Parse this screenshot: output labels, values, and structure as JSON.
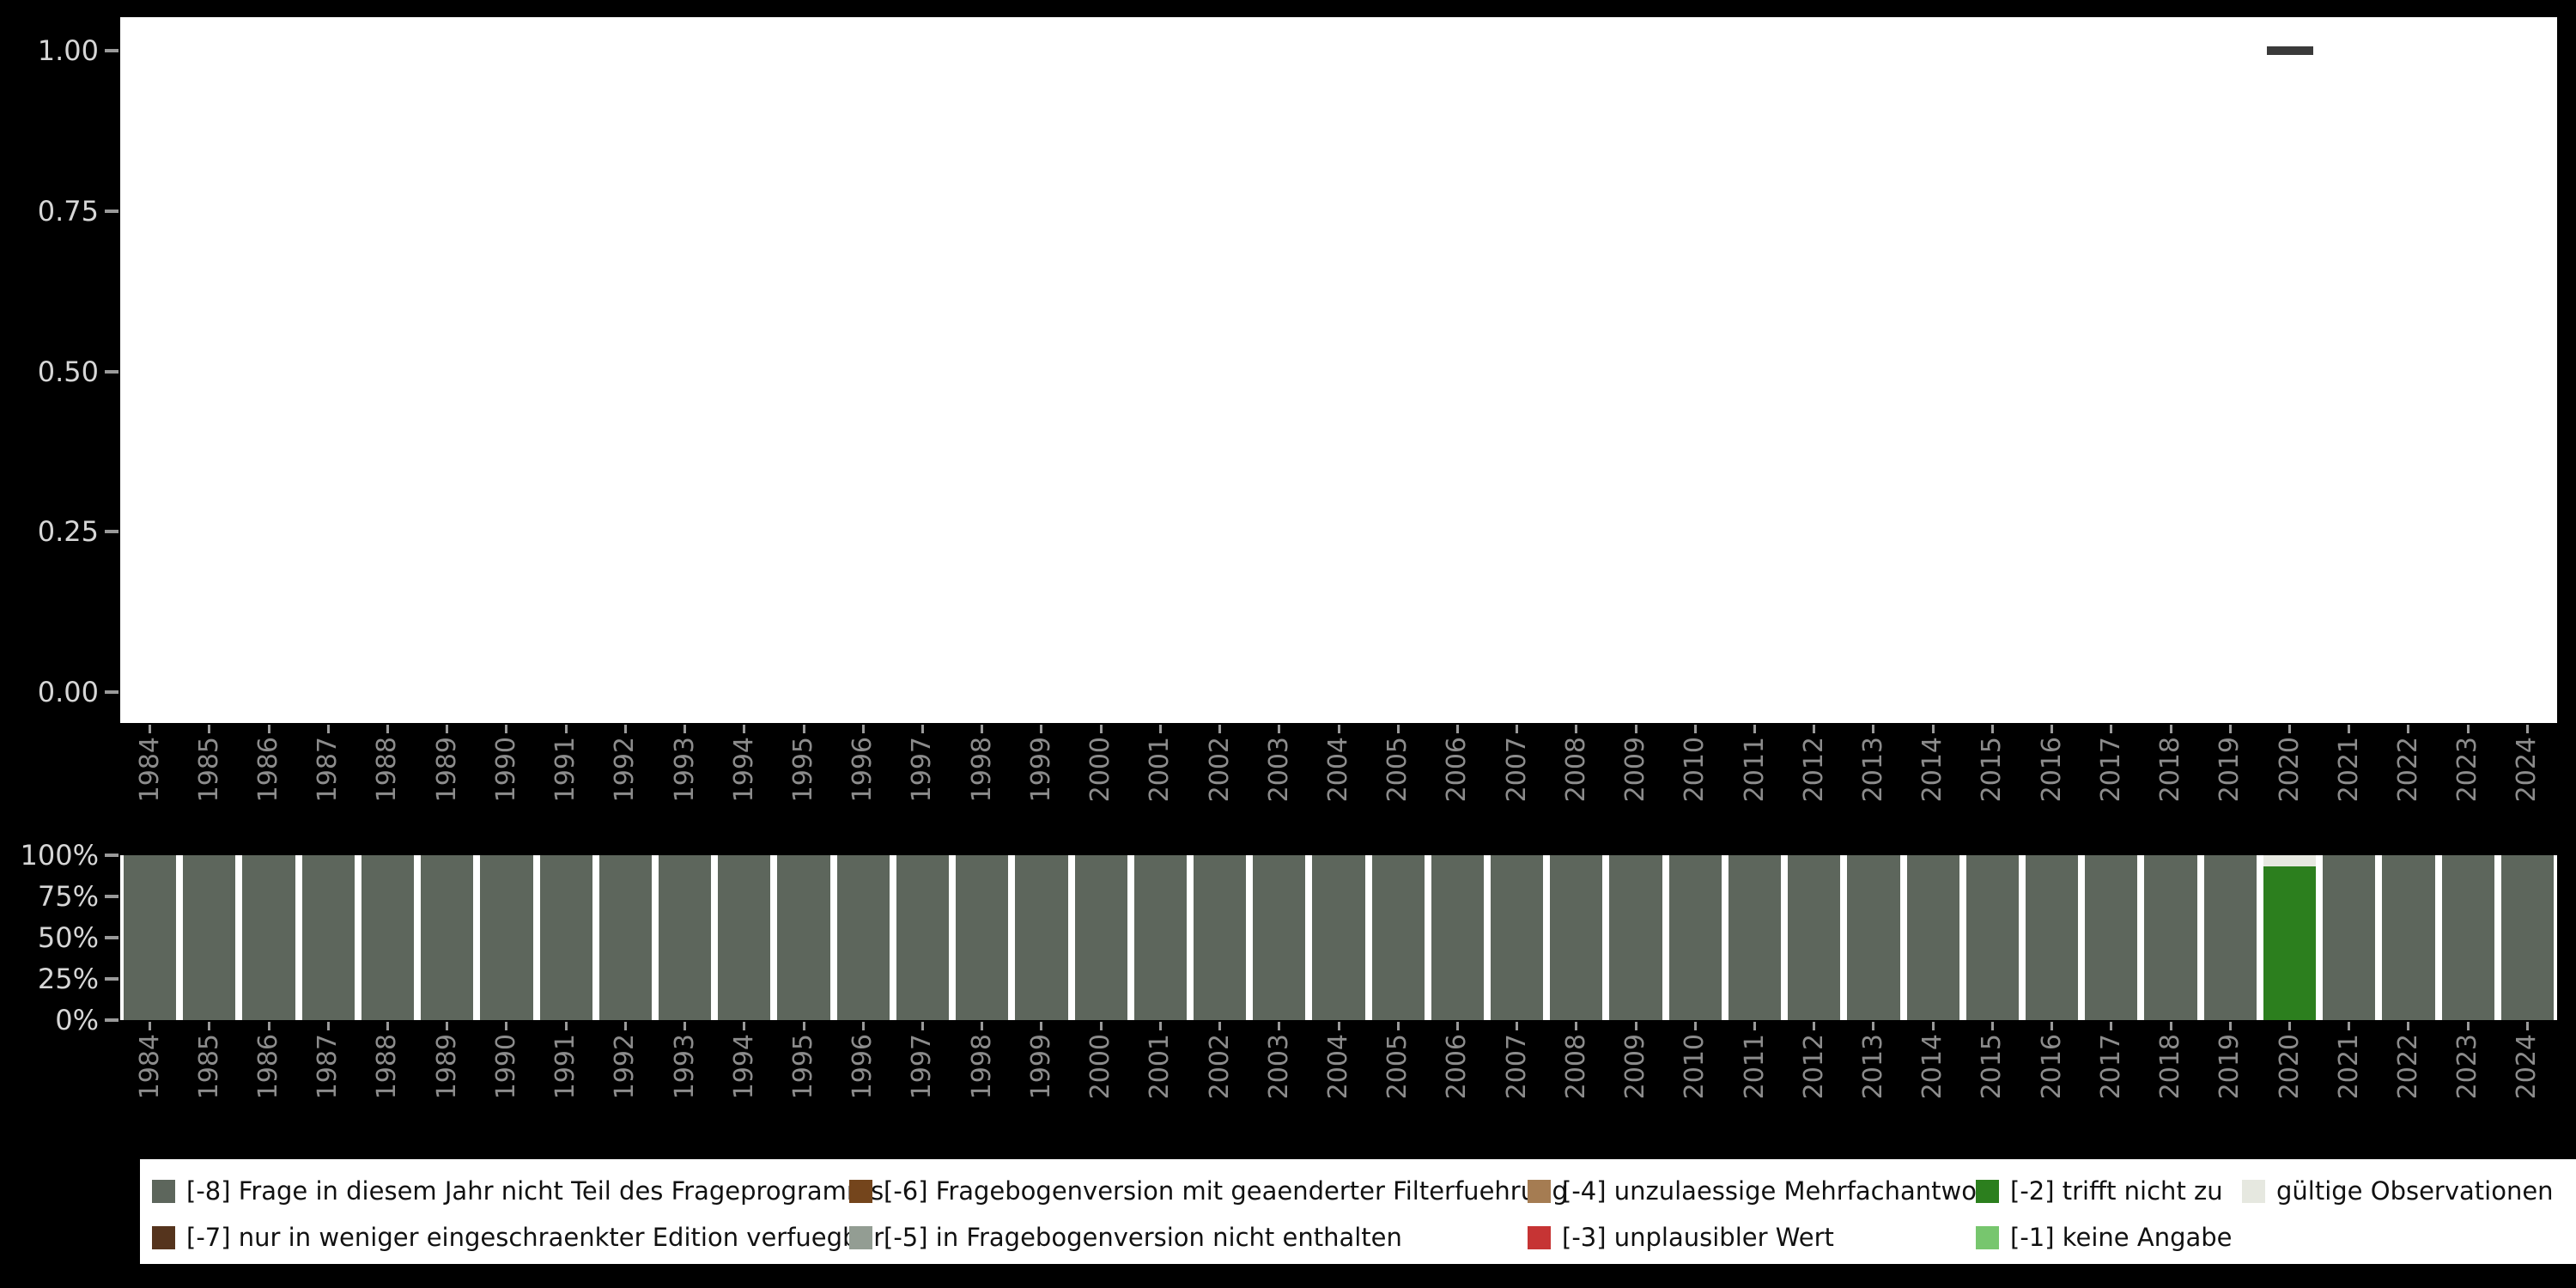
{
  "page": {
    "background": "#000000"
  },
  "colors": {
    "plot_bg": "#ffffff",
    "point": "#3a3a3a",
    "axis_y_text": "#d6d6d6",
    "axis_x_text": "#8c8c8c",
    "tick": "#9a9a9a",
    "legend_bg": "#ffffff",
    "legend_text": "#111111",
    "-8": "#5d665c",
    "-7": "#55341d",
    "-6": "#74451c",
    "-5": "#939d93",
    "-4": "#a57c52",
    "-3": "#c63434",
    "-2": "#2c7f1e",
    "-1": "#77c66e",
    "valid": "#e6e8e0"
  },
  "top_chart": {
    "ytick_labels": [
      "1.00",
      "0.75",
      "0.50",
      "0.25",
      "0.00"
    ],
    "ytick_values": [
      1.0,
      0.75,
      0.5,
      0.25,
      0.0
    ]
  },
  "bottom_chart": {
    "ytick_labels": [
      "100%",
      "75%",
      "50%",
      "25%",
      "0%"
    ],
    "ytick_values": [
      1.0,
      0.75,
      0.5,
      0.25,
      0.0
    ]
  },
  "legend": {
    "items": [
      {
        "key": "-8",
        "col": 0,
        "row": 0,
        "label": "[-8] Frage in diesem Jahr nicht Teil des Frageprogramms"
      },
      {
        "key": "-7",
        "col": 0,
        "row": 1,
        "label": "[-7] nur in weniger eingeschraenkter Edition verfuegbar"
      },
      {
        "key": "-6",
        "col": 1,
        "row": 0,
        "label": "[-6] Fragebogenversion mit geaenderter Filterfuehrung"
      },
      {
        "key": "-5",
        "col": 1,
        "row": 1,
        "label": "[-5] in Fragebogenversion nicht enthalten"
      },
      {
        "key": "-4",
        "col": 2,
        "row": 0,
        "label": "[-4] unzulaessige Mehrfachantwort"
      },
      {
        "key": "-3",
        "col": 2,
        "row": 1,
        "label": "[-3] unplausibler Wert"
      },
      {
        "key": "-2",
        "col": 3,
        "row": 0,
        "label": "[-2] trifft nicht zu"
      },
      {
        "key": "-1",
        "col": 3,
        "row": 1,
        "label": "[-1] keine Angabe"
      },
      {
        "key": "valid",
        "col": 4,
        "row": 0,
        "label": "gültige Observationen"
      }
    ]
  },
  "chart_data": [
    {
      "type": "scatter",
      "title": "",
      "xlabel": "",
      "ylabel": "",
      "ylim": [
        0,
        1
      ],
      "yticks": [
        "1.00",
        "0.75",
        "0.50",
        "0.25",
        "0.00"
      ],
      "x": [
        "2020"
      ],
      "y": [
        1.0
      ],
      "marker": "horizontal-dash",
      "note": "single dark dash mark at year 2020 with value 1.00; all other years have no data"
    },
    {
      "type": "bar",
      "stacked": true,
      "percent": true,
      "title": "",
      "xlabel": "",
      "ylabel": "",
      "yticks": [
        "100%",
        "75%",
        "50%",
        "25%",
        "0%"
      ],
      "legend_position": "bottom",
      "categories": [
        "1984",
        "1985",
        "1986",
        "1987",
        "1988",
        "1989",
        "1990",
        "1991",
        "1992",
        "1993",
        "1994",
        "1995",
        "1996",
        "1997",
        "1998",
        "1999",
        "2000",
        "2001",
        "2002",
        "2003",
        "2004",
        "2005",
        "2006",
        "2007",
        "2008",
        "2009",
        "2010",
        "2011",
        "2012",
        "2013",
        "2014",
        "2015",
        "2016",
        "2017",
        "2018",
        "2019",
        "2020",
        "2021",
        "2022",
        "2023",
        "2024"
      ],
      "series": [
        {
          "key": "-8",
          "name": "[-8] Frage in diesem Jahr nicht Teil des Frageprogramms",
          "values": [
            100,
            100,
            100,
            100,
            100,
            100,
            100,
            100,
            100,
            100,
            100,
            100,
            100,
            100,
            100,
            100,
            100,
            100,
            100,
            100,
            100,
            100,
            100,
            100,
            100,
            100,
            100,
            100,
            100,
            100,
            100,
            100,
            100,
            100,
            100,
            100,
            0,
            100,
            100,
            100,
            100
          ]
        },
        {
          "key": "-2",
          "name": "[-2] trifft nicht zu",
          "values": [
            0,
            0,
            0,
            0,
            0,
            0,
            0,
            0,
            0,
            0,
            0,
            0,
            0,
            0,
            0,
            0,
            0,
            0,
            0,
            0,
            0,
            0,
            0,
            0,
            0,
            0,
            0,
            0,
            0,
            0,
            0,
            0,
            0,
            0,
            0,
            0,
            93,
            0,
            0,
            0,
            0
          ]
        },
        {
          "key": "valid",
          "name": "gültige Observationen",
          "values": [
            0,
            0,
            0,
            0,
            0,
            0,
            0,
            0,
            0,
            0,
            0,
            0,
            0,
            0,
            0,
            0,
            0,
            0,
            0,
            0,
            0,
            0,
            0,
            0,
            0,
            0,
            0,
            0,
            0,
            0,
            0,
            0,
            0,
            0,
            0,
            0,
            7,
            0,
            0,
            0,
            0
          ]
        }
      ]
    }
  ]
}
